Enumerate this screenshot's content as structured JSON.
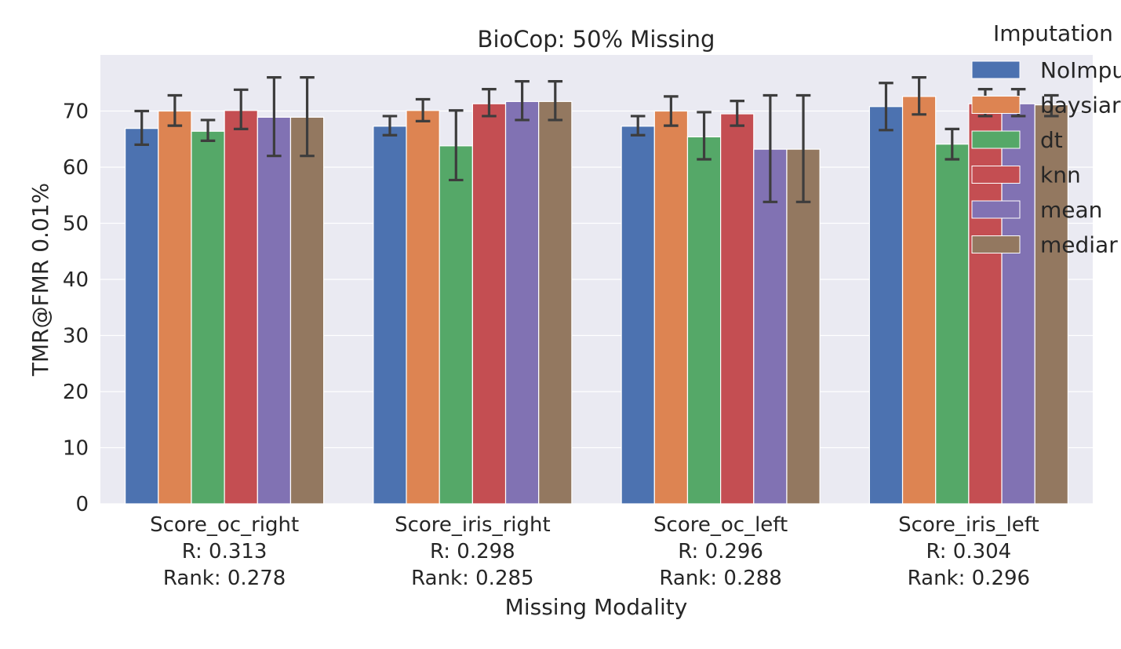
{
  "chart_data": {
    "type": "bar",
    "title": "BioCop: 50% Missing",
    "xlabel": "Missing Modality",
    "ylabel": "TMR@FMR 0.01%",
    "ylim": [
      0,
      80
    ],
    "yticks": [
      0,
      10,
      20,
      30,
      40,
      50,
      60,
      70
    ],
    "grid": true,
    "categories": [
      [
        "Score_oc_right",
        "R: 0.313",
        "Rank: 0.278"
      ],
      [
        "Score_iris_right",
        "R: 0.298",
        "Rank: 0.285"
      ],
      [
        "Score_oc_left",
        "R: 0.296",
        "Rank: 0.288"
      ],
      [
        "Score_iris_left",
        "R: 0.304",
        "Rank: 0.296"
      ]
    ],
    "legend": {
      "title": "Imputation",
      "placement": "upper-right-outside"
    },
    "series": [
      {
        "name": "NoImputation",
        "label_visible": "NoImpu",
        "color": "#4c72b0",
        "values": [
          66.9,
          67.3,
          67.3,
          70.8
        ],
        "err_low": [
          64.0,
          65.7,
          65.7,
          66.6
        ],
        "err_high": [
          70.0,
          69.1,
          69.1,
          75.0
        ]
      },
      {
        "name": "baysian",
        "label_visible": "baysiar",
        "color": "#dd8452",
        "values": [
          70.0,
          70.1,
          70.0,
          72.6
        ],
        "err_low": [
          67.4,
          68.2,
          67.4,
          69.4
        ],
        "err_high": [
          72.8,
          72.1,
          72.6,
          76.0
        ]
      },
      {
        "name": "dt",
        "label_visible": "dt",
        "color": "#55a868",
        "values": [
          66.4,
          63.8,
          65.4,
          64.1
        ],
        "err_low": [
          64.7,
          57.7,
          61.4,
          61.4
        ],
        "err_high": [
          68.4,
          70.1,
          69.8,
          66.8
        ]
      },
      {
        "name": "knn",
        "label_visible": "knn",
        "color": "#c44e52",
        "values": [
          70.1,
          71.3,
          69.5,
          71.3
        ],
        "err_low": [
          66.8,
          69.1,
          67.4,
          69.1
        ],
        "err_high": [
          73.8,
          73.9,
          71.8,
          73.9
        ]
      },
      {
        "name": "mean",
        "label_visible": "mean",
        "color": "#8172b3",
        "values": [
          68.9,
          71.7,
          63.2,
          71.3
        ],
        "err_low": [
          62.0,
          68.4,
          53.8,
          69.1
        ],
        "err_high": [
          76.0,
          75.3,
          72.8,
          73.9
        ]
      },
      {
        "name": "median",
        "label_visible": "mediar",
        "color": "#937860",
        "values": [
          68.9,
          71.7,
          63.2,
          71.1
        ],
        "err_low": [
          62.0,
          68.4,
          53.8,
          69.1
        ],
        "err_high": [
          76.0,
          75.3,
          72.8,
          72.8
        ]
      }
    ]
  }
}
